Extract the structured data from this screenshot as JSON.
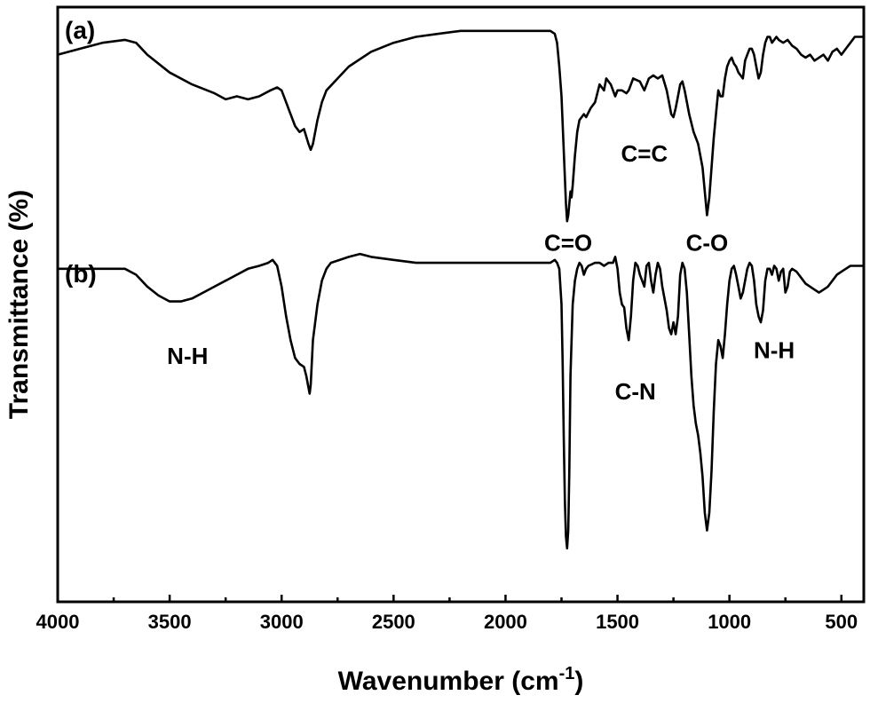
{
  "chart_data": {
    "type": "line",
    "xlabel": "Wavenumber (cm",
    "xlabel_sup": "-1",
    "xlabel_close": ")",
    "ylabel": "Transmittance (%)",
    "xlim": [
      4000,
      400
    ],
    "x_reversed": true,
    "ylim": [
      0,
      100
    ],
    "y_ticks_shown": false,
    "x_ticks": [
      4000,
      3500,
      3000,
      2500,
      2000,
      1500,
      1000,
      500
    ],
    "x_tick_labels": [
      "4000",
      "3500",
      "3000",
      "2500",
      "2000",
      "1500",
      "1000",
      "500"
    ],
    "grid": false,
    "legend": "none",
    "line_color": "#000000",
    "panel_labels": [
      {
        "text": "(a)",
        "x": 4000,
        "y": 98
      },
      {
        "text": "(b)",
        "x": 4000,
        "y": 57
      }
    ],
    "annotations": [
      {
        "text": "C=O",
        "x": 1720,
        "y": 59
      },
      {
        "text": "C=C",
        "x": 1380,
        "y": 74
      },
      {
        "text": "C-O",
        "x": 1100,
        "y": 59
      },
      {
        "text": "N-H",
        "x": 3420,
        "y": 40
      },
      {
        "text": "C-N",
        "x": 1420,
        "y": 34
      },
      {
        "text": "N-H",
        "x": 800,
        "y": 41
      }
    ],
    "series": [
      {
        "points": [
          [
            4000,
            92
          ],
          [
            3900,
            93
          ],
          [
            3800,
            94
          ],
          [
            3700,
            94.5
          ],
          [
            3650,
            94
          ],
          [
            3600,
            92
          ],
          [
            3500,
            89
          ],
          [
            3400,
            87
          ],
          [
            3300,
            85.5
          ],
          [
            3250,
            84.5
          ],
          [
            3200,
            85
          ],
          [
            3150,
            84.5
          ],
          [
            3100,
            85
          ],
          [
            3050,
            86
          ],
          [
            3020,
            86.5
          ],
          [
            3000,
            86
          ],
          [
            2980,
            84
          ],
          [
            2960,
            82
          ],
          [
            2940,
            80
          ],
          [
            2920,
            79
          ],
          [
            2900,
            79.5
          ],
          [
            2880,
            77
          ],
          [
            2870,
            76
          ],
          [
            2860,
            77
          ],
          [
            2840,
            81
          ],
          [
            2820,
            84
          ],
          [
            2800,
            86
          ],
          [
            2700,
            90
          ],
          [
            2600,
            92.5
          ],
          [
            2500,
            94
          ],
          [
            2400,
            95
          ],
          [
            2300,
            95.5
          ],
          [
            2200,
            96
          ],
          [
            2100,
            96
          ],
          [
            2000,
            96
          ],
          [
            1900,
            96
          ],
          [
            1800,
            96
          ],
          [
            1780,
            95.5
          ],
          [
            1770,
            94
          ],
          [
            1760,
            90
          ],
          [
            1750,
            85
          ],
          [
            1740,
            76
          ],
          [
            1730,
            67
          ],
          [
            1725,
            64
          ],
          [
            1720,
            65
          ],
          [
            1710,
            69
          ],
          [
            1705,
            68
          ],
          [
            1700,
            70
          ],
          [
            1690,
            75
          ],
          [
            1680,
            79
          ],
          [
            1670,
            81
          ],
          [
            1660,
            81.5
          ],
          [
            1650,
            82
          ],
          [
            1640,
            81.5
          ],
          [
            1620,
            83
          ],
          [
            1600,
            84
          ],
          [
            1580,
            87
          ],
          [
            1560,
            86
          ],
          [
            1550,
            88
          ],
          [
            1530,
            87
          ],
          [
            1510,
            85
          ],
          [
            1500,
            86
          ],
          [
            1480,
            86
          ],
          [
            1460,
            85.5
          ],
          [
            1450,
            86
          ],
          [
            1430,
            88
          ],
          [
            1400,
            87.5
          ],
          [
            1380,
            86
          ],
          [
            1360,
            88
          ],
          [
            1340,
            88.5
          ],
          [
            1320,
            88
          ],
          [
            1300,
            88.5
          ],
          [
            1280,
            86
          ],
          [
            1270,
            84
          ],
          [
            1260,
            82
          ],
          [
            1250,
            81.5
          ],
          [
            1240,
            83
          ],
          [
            1230,
            85
          ],
          [
            1220,
            87
          ],
          [
            1210,
            87.5
          ],
          [
            1200,
            86
          ],
          [
            1180,
            82
          ],
          [
            1160,
            79
          ],
          [
            1140,
            77
          ],
          [
            1120,
            73
          ],
          [
            1110,
            69
          ],
          [
            1100,
            65
          ],
          [
            1090,
            68
          ],
          [
            1080,
            73
          ],
          [
            1070,
            78
          ],
          [
            1060,
            82
          ],
          [
            1050,
            86
          ],
          [
            1040,
            85
          ],
          [
            1030,
            85
          ],
          [
            1020,
            88
          ],
          [
            1010,
            90
          ],
          [
            1000,
            91
          ],
          [
            990,
            91.5
          ],
          [
            980,
            90.5
          ],
          [
            970,
            90
          ],
          [
            960,
            89
          ],
          [
            950,
            88.5
          ],
          [
            940,
            88
          ],
          [
            930,
            91
          ],
          [
            920,
            92
          ],
          [
            910,
            93
          ],
          [
            900,
            93
          ],
          [
            890,
            92
          ],
          [
            880,
            90
          ],
          [
            870,
            88
          ],
          [
            860,
            89
          ],
          [
            850,
            92
          ],
          [
            840,
            94
          ],
          [
            830,
            95
          ],
          [
            820,
            95
          ],
          [
            810,
            94
          ],
          [
            800,
            94.5
          ],
          [
            790,
            95
          ],
          [
            780,
            94.5
          ],
          [
            760,
            94
          ],
          [
            740,
            94.5
          ],
          [
            720,
            93.5
          ],
          [
            700,
            93
          ],
          [
            680,
            92
          ],
          [
            660,
            91.5
          ],
          [
            640,
            92
          ],
          [
            620,
            91
          ],
          [
            600,
            91.5
          ],
          [
            580,
            92
          ],
          [
            560,
            91
          ],
          [
            540,
            92.5
          ],
          [
            520,
            93
          ],
          [
            500,
            92
          ],
          [
            480,
            93
          ],
          [
            460,
            94
          ],
          [
            440,
            95
          ],
          [
            420,
            95
          ],
          [
            400,
            95
          ]
        ]
      },
      {
        "points": [
          [
            4000,
            56
          ],
          [
            3900,
            56
          ],
          [
            3800,
            56
          ],
          [
            3700,
            56
          ],
          [
            3650,
            55
          ],
          [
            3600,
            53
          ],
          [
            3550,
            51.5
          ],
          [
            3500,
            50.5
          ],
          [
            3450,
            50.5
          ],
          [
            3400,
            51
          ],
          [
            3350,
            52
          ],
          [
            3300,
            53
          ],
          [
            3250,
            54
          ],
          [
            3200,
            55
          ],
          [
            3150,
            56
          ],
          [
            3100,
            56.5
          ],
          [
            3060,
            57
          ],
          [
            3040,
            57.5
          ],
          [
            3020,
            56.5
          ],
          [
            3000,
            53
          ],
          [
            2980,
            48
          ],
          [
            2960,
            44
          ],
          [
            2940,
            41
          ],
          [
            2920,
            40
          ],
          [
            2900,
            39.5
          ],
          [
            2890,
            38
          ],
          [
            2880,
            36
          ],
          [
            2875,
            35
          ],
          [
            2870,
            36.5
          ],
          [
            2860,
            44
          ],
          [
            2840,
            50
          ],
          [
            2820,
            54
          ],
          [
            2800,
            56
          ],
          [
            2780,
            57
          ],
          [
            2700,
            58
          ],
          [
            2650,
            58.5
          ],
          [
            2600,
            58
          ],
          [
            2500,
            57.5
          ],
          [
            2400,
            57
          ],
          [
            2300,
            57
          ],
          [
            2200,
            57
          ],
          [
            2100,
            57
          ],
          [
            2000,
            57
          ],
          [
            1900,
            57
          ],
          [
            1800,
            57
          ],
          [
            1780,
            57.5
          ],
          [
            1770,
            57
          ],
          [
            1760,
            56
          ],
          [
            1750,
            50
          ],
          [
            1745,
            40
          ],
          [
            1740,
            28
          ],
          [
            1735,
            17
          ],
          [
            1730,
            11
          ],
          [
            1725,
            9
          ],
          [
            1720,
            12
          ],
          [
            1715,
            22
          ],
          [
            1710,
            38
          ],
          [
            1700,
            50
          ],
          [
            1690,
            54
          ],
          [
            1680,
            56
          ],
          [
            1670,
            57
          ],
          [
            1660,
            56.5
          ],
          [
            1650,
            55
          ],
          [
            1640,
            56
          ],
          [
            1630,
            56.5
          ],
          [
            1600,
            57
          ],
          [
            1580,
            57
          ],
          [
            1560,
            56.5
          ],
          [
            1540,
            57
          ],
          [
            1520,
            57
          ],
          [
            1510,
            58
          ],
          [
            1500,
            56
          ],
          [
            1490,
            52
          ],
          [
            1480,
            50
          ],
          [
            1470,
            49.5
          ],
          [
            1460,
            46
          ],
          [
            1450,
            44
          ],
          [
            1440,
            48
          ],
          [
            1430,
            54
          ],
          [
            1420,
            57
          ],
          [
            1410,
            56.5
          ],
          [
            1400,
            55
          ],
          [
            1390,
            54
          ],
          [
            1380,
            53
          ],
          [
            1370,
            56.5
          ],
          [
            1360,
            57
          ],
          [
            1350,
            54
          ],
          [
            1340,
            52
          ],
          [
            1330,
            55
          ],
          [
            1320,
            57
          ],
          [
            1310,
            56
          ],
          [
            1300,
            53
          ],
          [
            1290,
            51
          ],
          [
            1280,
            49
          ],
          [
            1270,
            46
          ],
          [
            1260,
            45
          ],
          [
            1250,
            47
          ],
          [
            1240,
            45
          ],
          [
            1230,
            48
          ],
          [
            1220,
            55
          ],
          [
            1210,
            57
          ],
          [
            1200,
            56
          ],
          [
            1190,
            52
          ],
          [
            1180,
            45
          ],
          [
            1170,
            38
          ],
          [
            1160,
            33
          ],
          [
            1150,
            30
          ],
          [
            1140,
            28
          ],
          [
            1130,
            25
          ],
          [
            1120,
            21
          ],
          [
            1110,
            15
          ],
          [
            1100,
            12
          ],
          [
            1090,
            15
          ],
          [
            1080,
            22
          ],
          [
            1070,
            32
          ],
          [
            1060,
            40
          ],
          [
            1050,
            44
          ],
          [
            1040,
            43
          ],
          [
            1030,
            41
          ],
          [
            1020,
            45
          ],
          [
            1010,
            50
          ],
          [
            1000,
            54
          ],
          [
            990,
            56
          ],
          [
            980,
            56.5
          ],
          [
            970,
            55
          ],
          [
            960,
            53
          ],
          [
            950,
            51
          ],
          [
            940,
            52
          ],
          [
            930,
            54
          ],
          [
            920,
            56
          ],
          [
            910,
            57
          ],
          [
            900,
            56.5
          ],
          [
            890,
            54
          ],
          [
            880,
            50
          ],
          [
            870,
            48
          ],
          [
            860,
            47
          ],
          [
            850,
            49
          ],
          [
            840,
            54
          ],
          [
            830,
            56
          ],
          [
            820,
            56
          ],
          [
            810,
            55
          ],
          [
            800,
            56.5
          ],
          [
            790,
            56
          ],
          [
            780,
            54
          ],
          [
            770,
            55.5
          ],
          [
            760,
            56
          ],
          [
            750,
            52
          ],
          [
            740,
            53
          ],
          [
            730,
            55.5
          ],
          [
            720,
            56
          ],
          [
            700,
            55.5
          ],
          [
            680,
            54.5
          ],
          [
            660,
            53.5
          ],
          [
            640,
            53
          ],
          [
            620,
            52.5
          ],
          [
            600,
            52
          ],
          [
            580,
            52.5
          ],
          [
            560,
            53
          ],
          [
            540,
            54
          ],
          [
            520,
            55
          ],
          [
            500,
            55.5
          ],
          [
            480,
            56
          ],
          [
            460,
            56.5
          ],
          [
            440,
            56.5
          ],
          [
            420,
            56.5
          ],
          [
            400,
            56.5
          ]
        ]
      }
    ]
  }
}
